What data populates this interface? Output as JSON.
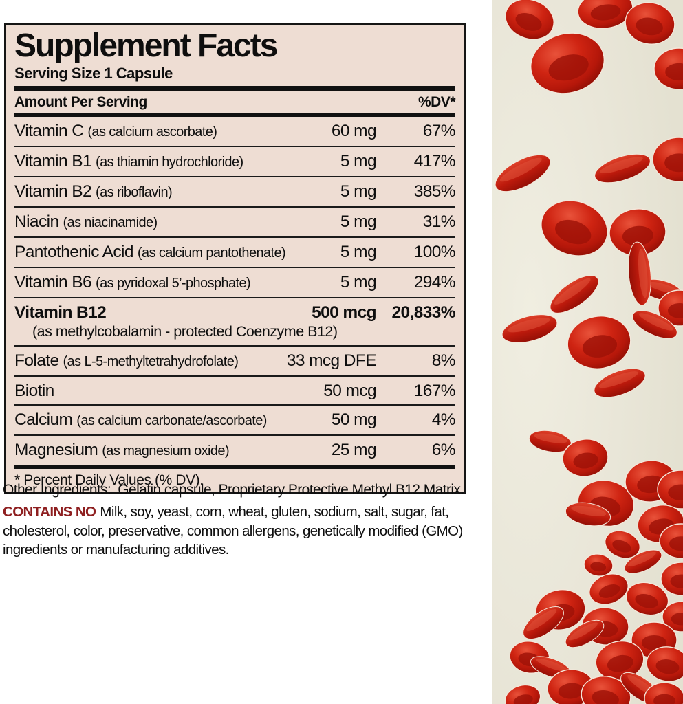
{
  "label": {
    "title": "Supplement Facts",
    "serving_size": "Serving Size 1 Capsule",
    "columns": {
      "amount": "Amount Per Serving",
      "dv": "%DV*"
    },
    "rows": [
      {
        "name": "Vitamin C",
        "desc": "(as calcium ascorbate)",
        "amount": "60 mg",
        "dv": "67%"
      },
      {
        "name": "Vitamin B1",
        "desc": "(as thiamin hydrochloride)",
        "amount": "5 mg",
        "dv": "417%"
      },
      {
        "name": "Vitamin B2",
        "desc": "(as riboflavin)",
        "amount": "5 mg",
        "dv": "385%"
      },
      {
        "name": "Niacin",
        "desc": "(as niacinamide)",
        "amount": "5 mg",
        "dv": "31%"
      },
      {
        "name": "Pantothenic Acid",
        "desc": "(as calcium pantothenate)",
        "amount": "5 mg",
        "dv": "100%"
      },
      {
        "name": "Vitamin B6",
        "desc": "(as pyridoxal 5’-phosphate)",
        "amount": "5 mg",
        "dv": "294%"
      },
      {
        "name": "Vitamin B12",
        "desc": "",
        "desc2": "(as methylcobalamin - protected Coenzyme B12)",
        "amount": "500 mcg",
        "dv": "20,833%"
      },
      {
        "name": "Folate",
        "desc": "(as L-5-methyltetrahydrofolate)",
        "amount": "33 mcg DFE",
        "dv": "8%"
      },
      {
        "name": "Biotin",
        "desc": "",
        "amount": "50 mcg",
        "dv": "167%"
      },
      {
        "name": "Calcium",
        "desc": "(as calcium carbonate/ascorbate)",
        "amount": "50 mg",
        "dv": "4%"
      },
      {
        "name": "Magnesium",
        "desc": "(as magnesium oxide)",
        "amount": "25 mg",
        "dv": "6%"
      }
    ],
    "footnote": "* Percent Daily Values (% DV)."
  },
  "other_ingredients": {
    "label": "Other Ingredients:",
    "text": "Gelatin capsule, Proprietary Protective Methyl B12 Matrix."
  },
  "contains_no": {
    "label": "CONTAINS NO",
    "text": "Milk, soy, yeast, corn, wheat, gluten, sodium, salt, sugar, fat, cholesterol, color, preservative, common allergens, genetically modified (GMO) ingredients or manufacturing additives."
  },
  "image": {
    "name": "red-blood-cells-illustration",
    "background": "#e9e6d8",
    "cell_color": "#c51a0c"
  },
  "colors": {
    "label_background": "#eeddd3",
    "border": "#151515",
    "contains_no_red": "#8e1f20"
  }
}
